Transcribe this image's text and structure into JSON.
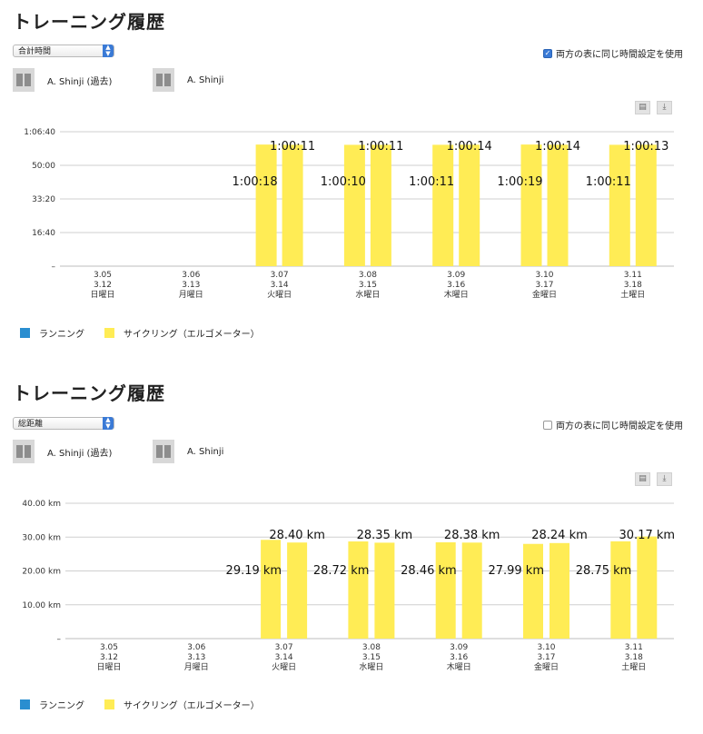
{
  "weekdays": [
    "日曜日",
    "月曜日",
    "火曜日",
    "水曜日",
    "木曜日",
    "金曜日",
    "土曜日"
  ],
  "dates_prev": [
    "3.05",
    "3.06",
    "3.07",
    "3.08",
    "3.09",
    "3.10",
    "3.11"
  ],
  "dates_curr": [
    "3.12",
    "3.13",
    "3.14",
    "3.15",
    "3.16",
    "3.17",
    "3.18"
  ],
  "colors": {
    "running": "#2a8ed0",
    "cycling": "#ffec55",
    "grid": "#cfcfcf"
  },
  "panels": [
    {
      "title": "トレーニング履歴",
      "select_value": "合計時間",
      "checkbox_label": "両方の表に同じ時間設定を使用",
      "checkbox_checked": true,
      "athlete_past": "A. Shinji (過去)",
      "athlete_current": "A. Shinji",
      "print_icon": "printer-icon",
      "download_icon": "download-icon",
      "legend": [
        "ランニング",
        "サイクリング（エルゴメーター）"
      ],
      "chart_data": {
        "type": "bar",
        "categories": [
          "3.05 3.12 日曜日",
          "3.06 3.13 月曜日",
          "3.07 3.14 火曜日",
          "3.08 3.15 水曜日",
          "3.09 3.16 木曜日",
          "3.10 3.17 金曜日",
          "3.11 3.18 土曜日"
        ],
        "series": [
          {
            "name": "A. Shinji (過去)",
            "values": [
              null,
              null,
              3618,
              3610,
              3611,
              3619,
              3611
            ],
            "labels": [
              "",
              "",
              "1:00:18",
              "1:00:10",
              "1:00:11",
              "1:00:19",
              "1:00:11"
            ]
          },
          {
            "name": "A. Shinji",
            "values": [
              null,
              null,
              3611,
              3611,
              3614,
              3614,
              3613
            ],
            "labels": [
              "",
              "",
              "1:00:11",
              "1:00:11",
              "1:00:14",
              "1:00:14",
              "1:00:13"
            ]
          }
        ],
        "y_ticks": [
          {
            "value": 1000,
            "label": "16:40"
          },
          {
            "value": 2000,
            "label": "33:20"
          },
          {
            "value": 3000,
            "label": "50:00"
          },
          {
            "value": 4000,
            "label": "1:06:40"
          }
        ],
        "y_zero_label": "–",
        "ylim": [
          0,
          4000
        ],
        "grid": true,
        "legend_position": "bottom-left"
      }
    },
    {
      "title": "トレーニング履歴",
      "select_value": "総距離",
      "checkbox_label": "両方の表に同じ時間設定を使用",
      "checkbox_checked": false,
      "athlete_past": "A. Shinji (過去)",
      "athlete_current": "A. Shinji",
      "print_icon": "printer-icon",
      "download_icon": "download-icon",
      "legend": [
        "ランニング",
        "サイクリング（エルゴメーター）"
      ],
      "chart_data": {
        "type": "bar",
        "categories": [
          "3.05 3.12 日曜日",
          "3.06 3.13 月曜日",
          "3.07 3.14 火曜日",
          "3.08 3.15 水曜日",
          "3.09 3.16 木曜日",
          "3.10 3.17 金曜日",
          "3.11 3.18 土曜日"
        ],
        "series": [
          {
            "name": "A. Shinji (過去)",
            "values": [
              null,
              null,
              29.19,
              28.72,
              28.46,
              27.99,
              28.75
            ],
            "labels": [
              "",
              "",
              "29.19 km",
              "28.72 km",
              "28.46 km",
              "27.99 km",
              "28.75 km"
            ]
          },
          {
            "name": "A. Shinji",
            "values": [
              null,
              null,
              28.4,
              28.35,
              28.38,
              28.24,
              30.17
            ],
            "labels": [
              "",
              "",
              "28.40 km",
              "28.35 km",
              "28.38 km",
              "28.24 km",
              "30.17 km"
            ]
          }
        ],
        "y_ticks": [
          {
            "value": 10,
            "label": "10.00 km"
          },
          {
            "value": 20,
            "label": "20.00 km"
          },
          {
            "value": 30,
            "label": "30.00 km"
          },
          {
            "value": 40,
            "label": "40.00 km"
          }
        ],
        "y_zero_label": "–",
        "ylim": [
          0,
          40
        ],
        "grid": true,
        "legend_position": "bottom-left"
      }
    }
  ]
}
